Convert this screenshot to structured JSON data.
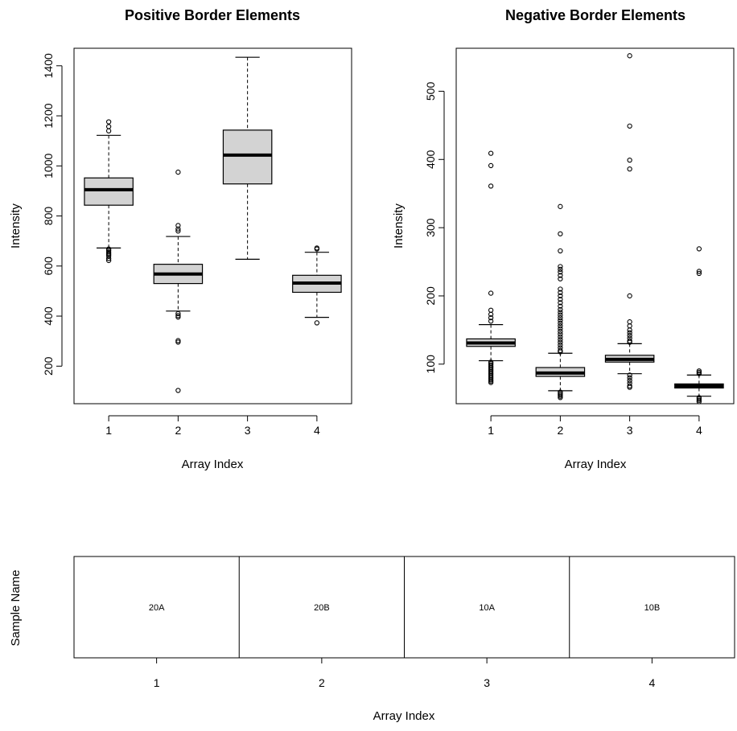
{
  "chart_data": [
    {
      "type": "box",
      "title": "Positive Border Elements",
      "xlabel": "Array Index",
      "ylabel": "Intensity",
      "categories": [
        "1",
        "2",
        "3",
        "4"
      ],
      "xlim": [
        0.5,
        4.5
      ],
      "ylim": [
        50,
        1470
      ],
      "yticks": [
        200,
        400,
        600,
        800,
        1000,
        1200,
        1400
      ],
      "boxes": [
        {
          "index": 1,
          "whisker_low": 672,
          "q1": 843,
          "median": 905,
          "q3": 952,
          "whisker_high": 1122,
          "outliers": [
            1176,
            1157,
            1140,
            668,
            662,
            656,
            650,
            645,
            640,
            630,
            622
          ]
        },
        {
          "index": 2,
          "whisker_low": 420,
          "q1": 530,
          "median": 568,
          "q3": 607,
          "whisker_high": 718,
          "outliers": [
            975,
            762,
            748,
            740,
            410,
            402,
            396,
            302,
            296,
            103
          ]
        },
        {
          "index": 3,
          "whisker_low": 627,
          "q1": 928,
          "median": 1043,
          "q3": 1143,
          "whisker_high": 1434,
          "outliers": []
        },
        {
          "index": 4,
          "whisker_low": 395,
          "q1": 495,
          "median": 532,
          "q3": 563,
          "whisker_high": 655,
          "outliers": [
            672,
            668,
            373
          ]
        }
      ]
    },
    {
      "type": "box",
      "title": "Negative Border Elements",
      "xlabel": "Array Index",
      "ylabel": "Intensity",
      "categories": [
        "1",
        "2",
        "3",
        "4"
      ],
      "xlim": [
        0.5,
        4.5
      ],
      "ylim": [
        42,
        563
      ],
      "yticks": [
        100,
        200,
        300,
        400,
        500
      ],
      "boxes": [
        {
          "index": 1,
          "whisker_low": 105,
          "q1": 126,
          "median": 131,
          "q3": 137,
          "whisker_high": 158,
          "outliers": [
            409,
            391,
            361,
            204,
            179,
            173,
            168,
            163,
            103,
            101,
            99,
            97,
            95,
            93,
            91,
            89,
            87,
            85,
            83,
            81,
            79,
            77,
            75,
            73
          ]
        },
        {
          "index": 2,
          "whisker_low": 61,
          "q1": 82,
          "median": 87,
          "q3": 95,
          "whisker_high": 116,
          "outliers": [
            331,
            291,
            266,
            243,
            239,
            235,
            230,
            225,
            210,
            205,
            200,
            195,
            190,
            185,
            180,
            176,
            172,
            168,
            164,
            160,
            156,
            152,
            148,
            144,
            140,
            136,
            132,
            128,
            124,
            120,
            118,
            59,
            57,
            55,
            53,
            51
          ]
        },
        {
          "index": 3,
          "whisker_low": 86,
          "q1": 103,
          "median": 107,
          "q3": 113,
          "whisker_high": 130,
          "outliers": [
            552,
            449,
            399,
            386,
            200,
            162,
            156,
            150,
            146,
            142,
            138,
            134,
            132,
            84,
            80,
            76,
            72,
            68,
            66
          ]
        },
        {
          "index": 4,
          "whisker_low": 53,
          "q1": 65,
          "median": 68,
          "q3": 71,
          "whisker_high": 84,
          "outliers": [
            269,
            236,
            233,
            90,
            88,
            86,
            51,
            49,
            47,
            45
          ]
        }
      ]
    },
    {
      "type": "table",
      "ylabel": "Sample Name",
      "xlabel": "Array Index",
      "categories": [
        "1",
        "2",
        "3",
        "4"
      ],
      "samples": [
        "20A",
        "20B",
        "10A",
        "10B"
      ]
    }
  ]
}
